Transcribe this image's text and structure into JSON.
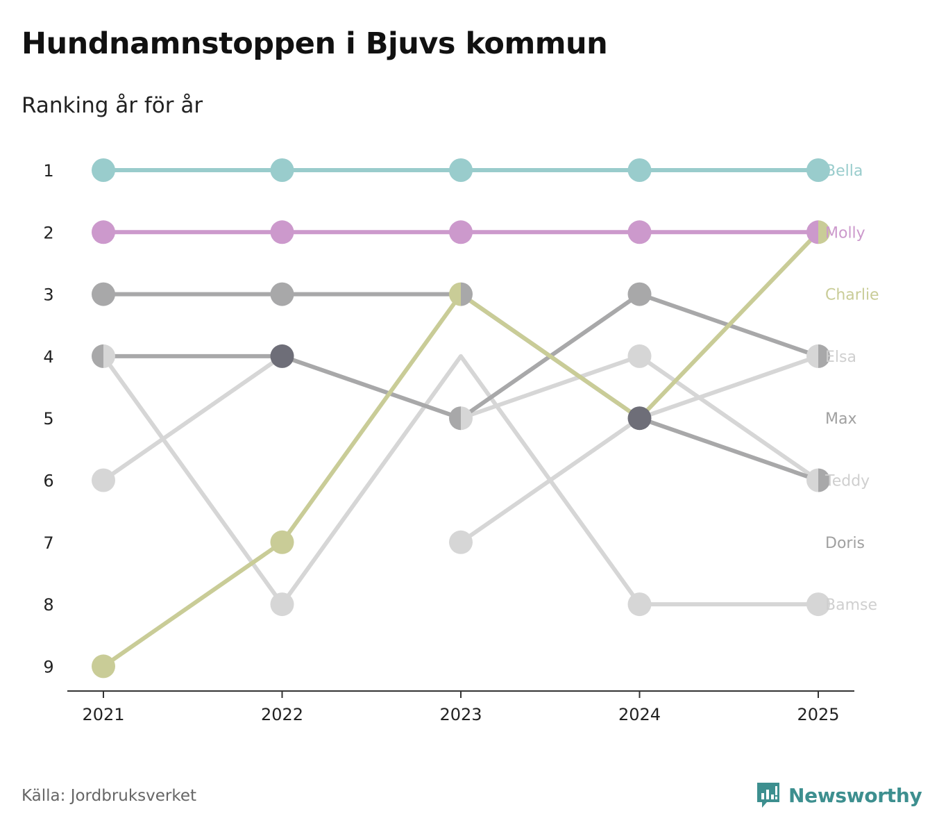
{
  "title": "Hundnamnstoppen i Bjuvs kommun",
  "subtitle": "Ranking år för år",
  "source": "Källa: Jordbruksverket",
  "brand": {
    "name": "Newsworthy",
    "icon": "newsworthy-logo-icon",
    "color": "#3d8f8f"
  },
  "chart_data": {
    "type": "line",
    "title": "Hundnamnstoppen i Bjuvs kommun",
    "subtitle": "Ranking år för år",
    "xlabel": "",
    "ylabel": "",
    "x": [
      "2021",
      "2022",
      "2023",
      "2024",
      "2025"
    ],
    "y_ticks": [
      "1",
      "2",
      "3",
      "4",
      "5",
      "6",
      "7",
      "8",
      "9"
    ],
    "ylim": [
      1,
      9
    ],
    "y_inverted": true,
    "grid": false,
    "series": [
      {
        "name": "Bamse",
        "color": "#d6d6d6",
        "values": [
          4,
          8,
          4,
          8,
          8
        ]
      },
      {
        "name": "Doris",
        "color": "#d6d6d6",
        "values": [
          6,
          4,
          5,
          4,
          6
        ]
      },
      {
        "name": "Teddy",
        "color": "#d6d6d6",
        "values": [
          null,
          null,
          7,
          5,
          4
        ]
      },
      {
        "name": "Max",
        "color": "#a8a8a9",
        "values": [
          4,
          4,
          5,
          3,
          4
        ]
      },
      {
        "name": "Elsa",
        "color": "#a8a8a9",
        "values": [
          3,
          3,
          3,
          5,
          6
        ]
      },
      {
        "name": "Charlie",
        "color": "#c9cc97",
        "values": [
          9,
          7,
          3,
          5,
          2
        ]
      },
      {
        "name": "Molly",
        "color": "#cc99cc",
        "values": [
          2,
          2,
          2,
          2,
          2
        ]
      },
      {
        "name": "Bella",
        "color": "#99cccc",
        "values": [
          1,
          1,
          1,
          1,
          1
        ]
      }
    ],
    "points": [
      {
        "year": "2021",
        "rank": 1,
        "colors": [
          "#99cccc"
        ]
      },
      {
        "year": "2021",
        "rank": 2,
        "colors": [
          "#cc99cc"
        ]
      },
      {
        "year": "2021",
        "rank": 3,
        "colors": [
          "#a8a8a9"
        ]
      },
      {
        "year": "2021",
        "rank": 4,
        "colors": [
          "#a8a8a9",
          "#d6d6d6"
        ]
      },
      {
        "year": "2021",
        "rank": 6,
        "colors": [
          "#d6d6d6"
        ]
      },
      {
        "year": "2021",
        "rank": 9,
        "colors": [
          "#c9cc97"
        ]
      },
      {
        "year": "2022",
        "rank": 1,
        "colors": [
          "#99cccc"
        ]
      },
      {
        "year": "2022",
        "rank": 2,
        "colors": [
          "#cc99cc"
        ]
      },
      {
        "year": "2022",
        "rank": 3,
        "colors": [
          "#a8a8a9"
        ]
      },
      {
        "year": "2022",
        "rank": 4,
        "colors": [
          "#6e6e78"
        ]
      },
      {
        "year": "2022",
        "rank": 7,
        "colors": [
          "#c9cc97"
        ]
      },
      {
        "year": "2022",
        "rank": 8,
        "colors": [
          "#d6d6d6"
        ]
      },
      {
        "year": "2023",
        "rank": 1,
        "colors": [
          "#99cccc"
        ]
      },
      {
        "year": "2023",
        "rank": 2,
        "colors": [
          "#cc99cc"
        ]
      },
      {
        "year": "2023",
        "rank": 3,
        "colors": [
          "#c9cc97",
          "#a8a8a9"
        ]
      },
      {
        "year": "2023",
        "rank": 5,
        "colors": [
          "#a8a8a9",
          "#d6d6d6"
        ]
      },
      {
        "year": "2023",
        "rank": 7,
        "colors": [
          "#d6d6d6"
        ]
      },
      {
        "year": "2024",
        "rank": 1,
        "colors": [
          "#99cccc"
        ]
      },
      {
        "year": "2024",
        "rank": 2,
        "colors": [
          "#cc99cc"
        ]
      },
      {
        "year": "2024",
        "rank": 3,
        "colors": [
          "#a8a8a9"
        ]
      },
      {
        "year": "2024",
        "rank": 4,
        "colors": [
          "#d6d6d6"
        ]
      },
      {
        "year": "2024",
        "rank": 5,
        "colors": [
          "#6e6e78"
        ]
      },
      {
        "year": "2024",
        "rank": 8,
        "colors": [
          "#d6d6d6"
        ]
      },
      {
        "year": "2025",
        "rank": 1,
        "colors": [
          "#99cccc"
        ]
      },
      {
        "year": "2025",
        "rank": 2,
        "colors": [
          "#cc99cc",
          "#c9cc97"
        ]
      },
      {
        "year": "2025",
        "rank": 4,
        "colors": [
          "#d6d6d6",
          "#a8a8a9"
        ]
      },
      {
        "year": "2025",
        "rank": 6,
        "colors": [
          "#d6d6d6",
          "#a8a8a9"
        ]
      },
      {
        "year": "2025",
        "rank": 8,
        "colors": [
          "#d6d6d6"
        ]
      }
    ],
    "labels": [
      {
        "text": "Bella",
        "rank": 1,
        "color": "#99cccc"
      },
      {
        "text": "Molly",
        "rank": 2,
        "color": "#cc99cc"
      },
      {
        "text": "Charlie",
        "rank": 3,
        "color": "#c9cc97"
      },
      {
        "text": "Elsa",
        "rank": 4,
        "color": "#cfcfcf"
      },
      {
        "text": "Max",
        "rank": 5,
        "color": "#a0a0a0"
      },
      {
        "text": "Teddy",
        "rank": 6,
        "color": "#cfcfcf"
      },
      {
        "text": "Doris",
        "rank": 7,
        "color": "#a0a0a0"
      },
      {
        "text": "Bamse",
        "rank": 8,
        "color": "#cfcfcf"
      }
    ]
  }
}
